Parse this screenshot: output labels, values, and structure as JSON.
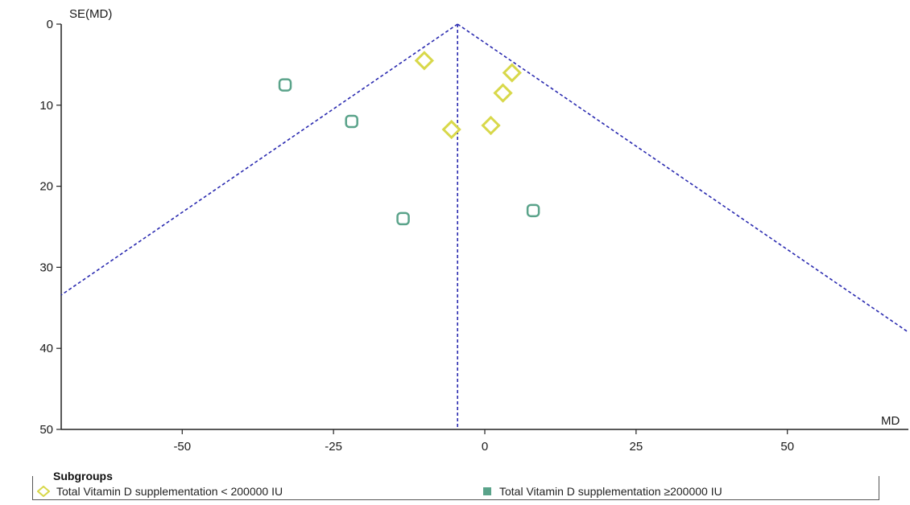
{
  "chart_data": {
    "type": "scatter",
    "title": "",
    "xlabel": "MD",
    "ylabel": "SE(MD)",
    "xlim": [
      -70,
      70
    ],
    "ylim": [
      50,
      0
    ],
    "y_inverted": true,
    "x_ticks": [
      "-50",
      "-25",
      "0",
      "25",
      "50"
    ],
    "x_tick_values": [
      -50,
      -25,
      0,
      25,
      50
    ],
    "y_ticks": [
      "0",
      "10",
      "20",
      "30",
      "40",
      "50"
    ],
    "y_tick_values": [
      0,
      10,
      20,
      30,
      40,
      50
    ],
    "pooled_estimate": -4.5,
    "funnel_color": "#2a2ab0",
    "series": [
      {
        "name": "Total Vitamin D supplementation < 200000 IU",
        "color": "#d8d84a",
        "marker": "diamond",
        "points": [
          {
            "x": -10,
            "y": 4.5
          },
          {
            "x": 4.5,
            "y": 6
          },
          {
            "x": 3,
            "y": 8.5
          },
          {
            "x": -5.5,
            "y": 13
          },
          {
            "x": 1,
            "y": 12.5
          }
        ]
      },
      {
        "name": "Total Vitamin D supplementation ≥200000 IU",
        "color": "#5aa38a",
        "marker": "square",
        "points": [
          {
            "x": -33,
            "y": 7.5
          },
          {
            "x": -22,
            "y": 12
          },
          {
            "x": -13.5,
            "y": 24
          },
          {
            "x": 8,
            "y": 23
          }
        ]
      }
    ],
    "legend": {
      "title": "Subgroups",
      "placement": "bottom"
    }
  }
}
